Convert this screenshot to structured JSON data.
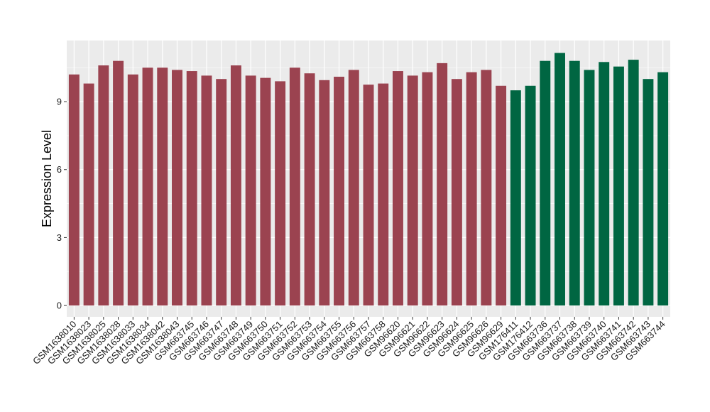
{
  "chart_data": {
    "type": "bar",
    "xlabel": "",
    "ylabel": "Expression Level",
    "ylim": [
      -0.5,
      11.7
    ],
    "yticks": [
      0,
      3,
      6,
      9
    ],
    "grid": true,
    "legend": "none",
    "panel_background": "#ebebeb",
    "grid_color": "#ffffff",
    "categories": [
      "GSM1638010",
      "GSM1638023",
      "GSM1638025",
      "GSM1638028",
      "GSM1638033",
      "GSM1638034",
      "GSM1638042",
      "GSM1638043",
      "GSM663745",
      "GSM663746",
      "GSM663747",
      "GSM663748",
      "GSM663749",
      "GSM663750",
      "GSM663751",
      "GSM663752",
      "GSM663753",
      "GSM663754",
      "GSM663755",
      "GSM663756",
      "GSM663757",
      "GSM663758",
      "GSM96620",
      "GSM96621",
      "GSM96622",
      "GSM96623",
      "GSM96624",
      "GSM96625",
      "GSM96626",
      "GSM96629",
      "GSM176411",
      "GSM176412",
      "GSM663736",
      "GSM663737",
      "GSM663738",
      "GSM663739",
      "GSM663740",
      "GSM663741",
      "GSM663742",
      "GSM663743",
      "GSM663744"
    ],
    "values": [
      10.2,
      9.8,
      10.6,
      10.8,
      10.2,
      10.5,
      10.5,
      10.4,
      10.35,
      10.15,
      10.0,
      10.6,
      10.15,
      10.05,
      9.9,
      10.5,
      10.25,
      9.95,
      10.1,
      10.4,
      9.75,
      9.8,
      10.35,
      10.15,
      10.3,
      10.7,
      10.0,
      10.3,
      10.4,
      9.7,
      9.5,
      9.7,
      10.8,
      11.15,
      10.8,
      10.4,
      10.75,
      10.55,
      10.85,
      10.0,
      10.3
    ],
    "groups": [
      0,
      0,
      0,
      0,
      0,
      0,
      0,
      0,
      0,
      0,
      0,
      0,
      0,
      0,
      0,
      0,
      0,
      0,
      0,
      0,
      0,
      0,
      0,
      0,
      0,
      0,
      0,
      0,
      0,
      0,
      1,
      1,
      1,
      1,
      1,
      1,
      1,
      1,
      1,
      1,
      1
    ],
    "group_colors": [
      "#9b4350",
      "#006642"
    ]
  }
}
